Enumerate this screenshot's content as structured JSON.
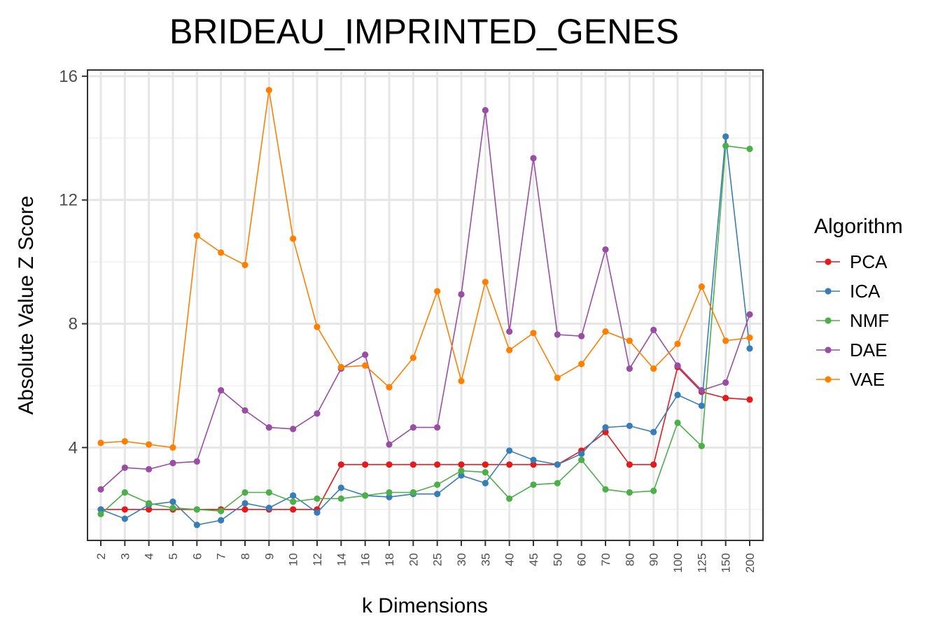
{
  "chart_data": {
    "type": "line",
    "title": "BRIDEAU_IMPRINTED_GENES",
    "xlabel": "k Dimensions",
    "ylabel": "Absolute Value Z Score",
    "x": [
      "2",
      "3",
      "4",
      "5",
      "6",
      "7",
      "8",
      "9",
      "10",
      "12",
      "14",
      "16",
      "18",
      "20",
      "25",
      "30",
      "35",
      "40",
      "45",
      "50",
      "60",
      "70",
      "80",
      "90",
      "100",
      "125",
      "150",
      "200"
    ],
    "yticks": [
      "4",
      "8",
      "12",
      "16"
    ],
    "ylim": [
      1.0,
      16.2
    ],
    "grid": true,
    "legend": {
      "title": "Algorithm",
      "position": "right"
    },
    "series": [
      {
        "name": "PCA",
        "color": "#e41a1c",
        "values": [
          2.0,
          2.0,
          2.0,
          2.0,
          2.0,
          2.0,
          2.0,
          2.0,
          2.0,
          2.0,
          3.45,
          3.45,
          3.45,
          3.45,
          3.45,
          3.45,
          3.45,
          3.45,
          3.45,
          3.45,
          3.9,
          4.5,
          3.45,
          3.45,
          6.6,
          5.8,
          5.6,
          5.55
        ]
      },
      {
        "name": "ICA",
        "color": "#377eb8",
        "values": [
          2.0,
          1.7,
          2.15,
          2.25,
          1.5,
          1.65,
          2.2,
          2.05,
          2.45,
          1.9,
          2.7,
          2.45,
          2.4,
          2.5,
          2.5,
          3.1,
          2.85,
          3.9,
          3.6,
          3.45,
          3.8,
          4.65,
          4.7,
          4.5,
          5.7,
          5.35,
          14.05,
          7.2
        ]
      },
      {
        "name": "NMF",
        "color": "#4daf4a",
        "values": [
          1.85,
          2.55,
          2.2,
          2.05,
          2.0,
          1.95,
          2.55,
          2.55,
          2.25,
          2.35,
          2.35,
          2.45,
          2.55,
          2.55,
          2.8,
          3.25,
          3.2,
          2.35,
          2.8,
          2.85,
          3.6,
          2.65,
          2.55,
          2.6,
          4.8,
          4.05,
          13.75,
          13.65
        ]
      },
      {
        "name": "DAE",
        "color": "#984ea3",
        "values": [
          2.65,
          3.35,
          3.3,
          3.5,
          3.55,
          5.85,
          5.2,
          4.65,
          4.6,
          5.1,
          6.55,
          7.0,
          4.1,
          4.65,
          4.65,
          8.95,
          14.9,
          7.75,
          13.35,
          7.65,
          7.6,
          10.4,
          6.55,
          7.8,
          6.65,
          5.85,
          6.1,
          8.3
        ]
      },
      {
        "name": "VAE",
        "color": "#ff7f00",
        "values": [
          4.15,
          4.2,
          4.1,
          4.0,
          10.85,
          10.3,
          9.9,
          15.55,
          10.75,
          7.9,
          6.6,
          6.65,
          5.95,
          6.9,
          9.05,
          6.15,
          9.35,
          7.15,
          7.7,
          6.25,
          6.7,
          7.75,
          7.45,
          6.55,
          7.35,
          9.2,
          7.45,
          7.55
        ]
      }
    ]
  }
}
